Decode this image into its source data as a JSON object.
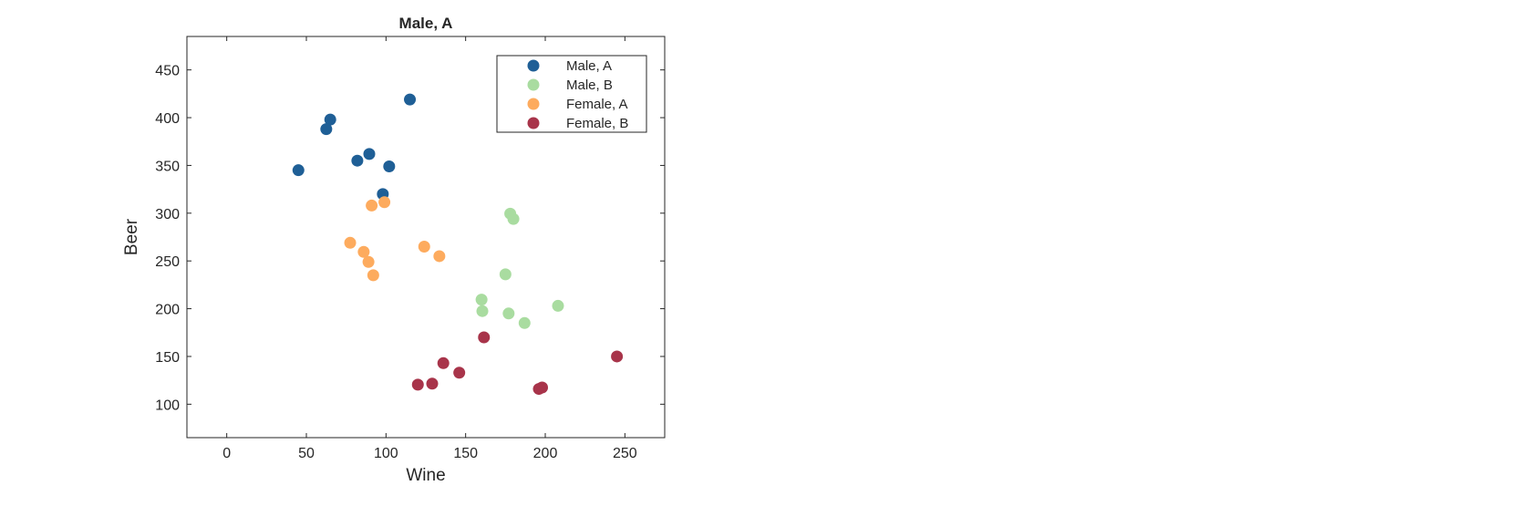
{
  "chart_data": {
    "type": "scatter",
    "title": "Male, A",
    "xlabel": "Wine",
    "ylabel": "Beer",
    "xlim": [
      -25,
      275
    ],
    "ylim": [
      65,
      485
    ],
    "xticks": [
      0,
      50,
      100,
      150,
      200,
      250
    ],
    "yticks": [
      100,
      150,
      200,
      250,
      300,
      350,
      400,
      450
    ],
    "grid": false,
    "legend_placement": "top-right",
    "series": [
      {
        "name": "Male, A",
        "color": "#1f5f96",
        "points": [
          [
            45,
            345
          ],
          [
            65,
            398
          ],
          [
            62.5,
            388
          ],
          [
            115,
            419
          ],
          [
            82,
            355
          ],
          [
            89.5,
            362
          ],
          [
            102,
            349
          ],
          [
            98,
            320
          ]
        ]
      },
      {
        "name": "Male, B",
        "color": "#a9dca0",
        "points": [
          [
            178,
            299.5
          ],
          [
            180,
            294
          ],
          [
            175,
            236
          ],
          [
            160,
            209.5
          ],
          [
            160.5,
            197.5
          ],
          [
            177,
            195
          ],
          [
            187,
            185
          ],
          [
            208,
            203
          ]
        ]
      },
      {
        "name": "Female, A",
        "color": "#fdab5e",
        "points": [
          [
            91,
            308
          ],
          [
            99,
            311.5
          ],
          [
            77.5,
            269
          ],
          [
            86,
            259.5
          ],
          [
            89,
            249
          ],
          [
            92,
            235
          ],
          [
            124,
            265
          ],
          [
            133.5,
            255
          ]
        ]
      },
      {
        "name": "Female, B",
        "color": "#a8344a",
        "points": [
          [
            161.5,
            170
          ],
          [
            136,
            143
          ],
          [
            146,
            133
          ],
          [
            120,
            120.5
          ],
          [
            129,
            121.5
          ],
          [
            196,
            116
          ],
          [
            198,
            117.5
          ],
          [
            245,
            150
          ]
        ]
      }
    ]
  }
}
